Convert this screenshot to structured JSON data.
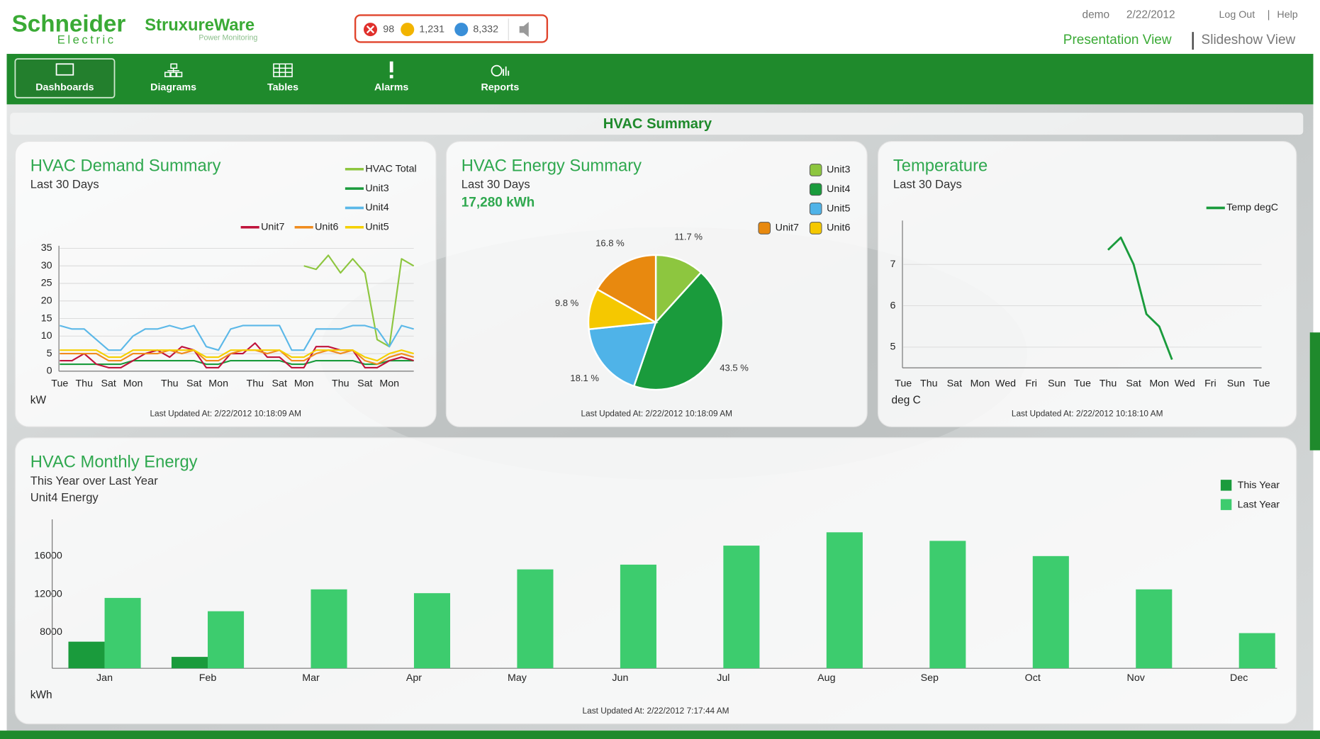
{
  "header": {
    "brand": "Schneider",
    "brand_sub": "Electric",
    "product": "StruxureWare",
    "product_sub": "Power Monitoring",
    "alarms": {
      "critical": "98",
      "warning": "1,231",
      "info": "8,332"
    },
    "user": "demo",
    "date": "2/22/2012",
    "links": [
      "Log Out",
      "Help"
    ],
    "views": [
      "Presentation View",
      "Slideshow View"
    ]
  },
  "nav": [
    "Dashboards",
    "Diagrams",
    "Tables",
    "Alarms",
    "Reports"
  ],
  "page_title": "HVAC Summary",
  "chart_data": [
    {
      "type": "line",
      "title": "HVAC Demand Summary",
      "subtitle": "Last 30 Days",
      "y_label": "kW",
      "updated": "Last Updated At: 2/22/2012 10:18:09 AM",
      "categories": [
        "Tue",
        null,
        "Thu",
        null,
        "Sat",
        null,
        "Mon",
        null,
        null,
        "Thu",
        null,
        "Sat",
        null,
        "Mon",
        null,
        null,
        "Thu",
        null,
        "Sat",
        null,
        "Mon",
        null,
        null,
        "Thu",
        null,
        "Sat",
        null,
        "Mon",
        null,
        null
      ],
      "ylim": [
        0,
        35
      ],
      "yticks": [
        0,
        5,
        10,
        15,
        20,
        25,
        30,
        35
      ],
      "grid": true,
      "series": [
        {
          "name": "HVAC Total",
          "color": "#8dc63f",
          "values": [
            null,
            null,
            null,
            null,
            null,
            null,
            null,
            null,
            null,
            null,
            null,
            null,
            null,
            null,
            null,
            null,
            null,
            null,
            null,
            null,
            30,
            29,
            33,
            28,
            32,
            28,
            9,
            7,
            32,
            30
          ]
        },
        {
          "name": "Unit3",
          "color": "#1a9b3c",
          "values": [
            2,
            2,
            2,
            2,
            2,
            2,
            3,
            3,
            3,
            3,
            3,
            3,
            2,
            2,
            3,
            3,
            3,
            3,
            3,
            2,
            2,
            3,
            3,
            3,
            3,
            2,
            2,
            3,
            3,
            3
          ]
        },
        {
          "name": "Unit4",
          "color": "#5bb8e8",
          "values": [
            13,
            12,
            12,
            9,
            6,
            6,
            10,
            12,
            12,
            13,
            12,
            13,
            7,
            6,
            12,
            13,
            13,
            13,
            13,
            6,
            6,
            12,
            12,
            12,
            13,
            13,
            12,
            7,
            13,
            12
          ]
        },
        {
          "name": "Unit7",
          "color": "#c0143c",
          "values": [
            3,
            3,
            5,
            2,
            1,
            1,
            3,
            5,
            6,
            4,
            7,
            6,
            1,
            1,
            5,
            5,
            8,
            4,
            4,
            1,
            1,
            7,
            7,
            6,
            6,
            1,
            1,
            3,
            4,
            3
          ]
        },
        {
          "name": "Unit6",
          "color": "#f08c1e",
          "values": [
            5,
            5,
            5,
            5,
            3,
            3,
            5,
            5,
            5,
            6,
            5,
            6,
            3,
            3,
            5,
            6,
            6,
            5,
            6,
            3,
            3,
            5,
            6,
            5,
            6,
            3,
            2,
            4,
            5,
            4
          ]
        },
        {
          "name": "Unit5",
          "color": "#f5d000",
          "values": [
            6,
            6,
            6,
            6,
            4,
            4,
            6,
            6,
            6,
            6,
            6,
            6,
            4,
            4,
            6,
            6,
            6,
            6,
            6,
            4,
            4,
            6,
            6,
            6,
            6,
            4,
            3,
            5,
            6,
            5
          ]
        }
      ]
    },
    {
      "type": "pie",
      "title": "HVAC Energy Summary",
      "subtitle": "Last 30 Days",
      "total": "17,280 kWh",
      "updated": "Last Updated At: 2/22/2012 10:18:09 AM",
      "categories": [
        "Unit3",
        "Unit4",
        "Unit5",
        "Unit6",
        "Unit7"
      ],
      "values": [
        11.7,
        43.5,
        18.1,
        9.8,
        16.8
      ],
      "value_labels": [
        "11.7 %",
        "43.5 %",
        "18.1 %",
        "9.8 %",
        "16.8 %"
      ],
      "colors": [
        "#8dc63f",
        "#1a9b3c",
        "#4fb3e8",
        "#f5c800",
        "#e8890f"
      ]
    },
    {
      "type": "line",
      "title": "Temperature",
      "subtitle": "Last 30 Days",
      "y_label": "deg C",
      "updated": "Last Updated At: 2/22/2012 10:18:10 AM",
      "categories": [
        "Tue",
        null,
        "Thu",
        null,
        "Sat",
        null,
        "Mon",
        null,
        "Wed",
        null,
        "Fri",
        null,
        "Sun",
        null,
        "Tue",
        null,
        "Thu",
        null,
        "Sat",
        null,
        "Mon",
        null,
        "Wed",
        null,
        "Fri",
        null,
        "Sun",
        null,
        "Tue"
      ],
      "ylim": [
        4.5,
        8
      ],
      "yticks": [
        5,
        6,
        7
      ],
      "grid": true,
      "series": [
        {
          "name": "Temp degC",
          "color": "#1a9b3c",
          "values": [
            null,
            null,
            null,
            null,
            null,
            null,
            null,
            null,
            null,
            null,
            null,
            null,
            null,
            null,
            null,
            null,
            7.35,
            7.65,
            7.0,
            5.8,
            5.5,
            4.7,
            null,
            null,
            null,
            null,
            null,
            null,
            null
          ]
        }
      ]
    },
    {
      "type": "bar",
      "title": "HVAC Monthly Energy",
      "subtitle": "This Year over Last Year",
      "description": "Unit4 Energy",
      "y_label": "kWh",
      "updated": "Last Updated At: 2/22/2012 7:17:44 AM",
      "categories": [
        "Jan",
        "Feb",
        "Mar",
        "Apr",
        "May",
        "Jun",
        "Jul",
        "Aug",
        "Sep",
        "Oct",
        "Nov",
        "Dec"
      ],
      "ylim": [
        4200,
        19600
      ],
      "yticks": [
        8000,
        12000,
        16000
      ],
      "grid": false,
      "series": [
        {
          "name": "This Year",
          "color": "#1a9b3c",
          "values": [
            7000,
            5400,
            null,
            null,
            null,
            null,
            null,
            null,
            null,
            null,
            null,
            null
          ]
        },
        {
          "name": "Last Year",
          "color": "#3dcc6e",
          "values": [
            11600,
            10200,
            12500,
            12100,
            14600,
            15100,
            17100,
            18500,
            17600,
            16000,
            12500,
            7900
          ]
        }
      ]
    }
  ]
}
